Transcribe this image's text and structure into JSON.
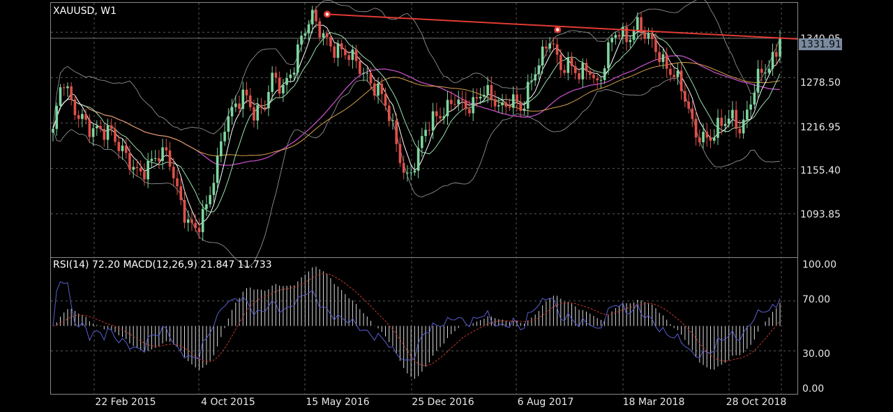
{
  "header": {
    "symbol_timeframe": "XAUUSD, W1",
    "indicator_caption": "RSI(14) 72.20 MACD(12,26,9) 21.847 11.733"
  },
  "colors": {
    "background": "#000000",
    "grid": "#5a5a5a",
    "bull": "#7fd6a0",
    "bear": "#e0504a",
    "trendline": "#e23b33",
    "ma_white": "#ffffff",
    "ma_green": "#9ee0b0",
    "ma_magenta": "#c24fc6",
    "ma_orange": "#d8a24a",
    "band": "#a0a0a0",
    "rsi": "#5a5fd0",
    "signal": "#c0392b",
    "hist": "#dcdcdc",
    "price_tag_bg": "#7a8aa0"
  },
  "price_axis": {
    "ticks": [
      "1340.05",
      "1278.50",
      "1216.95",
      "1155.40",
      "1093.85"
    ],
    "current_price": "1331.91"
  },
  "indicator_axis": {
    "ticks": [
      "100.00",
      "70.00",
      "30.00",
      "0.00"
    ]
  },
  "time_axis": {
    "ticks": [
      "22 Feb 2015",
      "4 Oct 2015",
      "15 May 2016",
      "25 Dec 2016",
      "6 Aug 2017",
      "18 Mar 2018",
      "28 Oct 2018"
    ]
  },
  "chart_data": [
    {
      "type": "candlestick",
      "title": "XAUUSD, W1",
      "ylim": [
        1035,
        1380
      ],
      "y_ticks": [
        1340.05,
        1278.5,
        1216.95,
        1155.4,
        1093.85
      ],
      "x_ticks": [
        "22 Feb 2015",
        "4 Oct 2015",
        "15 May 2016",
        "25 Dec 2016",
        "6 Aug 2017",
        "18 Mar 2018",
        "28 Oct 2018"
      ],
      "close_path": [
        1205,
        1275,
        1240,
        1230,
        1205,
        1200,
        1210,
        1190,
        1160,
        1140,
        1165,
        1180,
        1170,
        1120,
        1090,
        1075,
        1095,
        1150,
        1225,
        1240,
        1250,
        1230,
        1245,
        1280,
        1255,
        1290,
        1340,
        1360,
        1335,
        1325,
        1320,
        1305,
        1290,
        1280,
        1265,
        1230,
        1180,
        1145,
        1170,
        1205,
        1225,
        1240,
        1250,
        1230,
        1245,
        1270,
        1245,
        1230,
        1255,
        1240,
        1270,
        1300,
        1340,
        1295,
        1290,
        1280,
        1300,
        1265,
        1310,
        1345,
        1335,
        1350,
        1330,
        1320,
        1300,
        1280,
        1250,
        1210,
        1200,
        1195,
        1215,
        1230,
        1210,
        1245,
        1285,
        1300,
        1330
      ],
      "current_price": 1331.91,
      "trendline": [
        [
          1364.5,
          0.0
        ],
        [
          1343.5,
          0.49
        ],
        [
          1331.0,
          1.0
        ]
      ]
    },
    {
      "type": "line",
      "title": "RSI(14) 72.20 MACD(12,26,9) 21.847 11.733",
      "ylim": [
        0,
        100
      ],
      "y_ticks": [
        100,
        70,
        30,
        0
      ],
      "reference_lines": [
        70,
        30
      ],
      "rsi_value": 72.2,
      "macd": {
        "main": 21.847,
        "signal": 11.733
      }
    }
  ]
}
